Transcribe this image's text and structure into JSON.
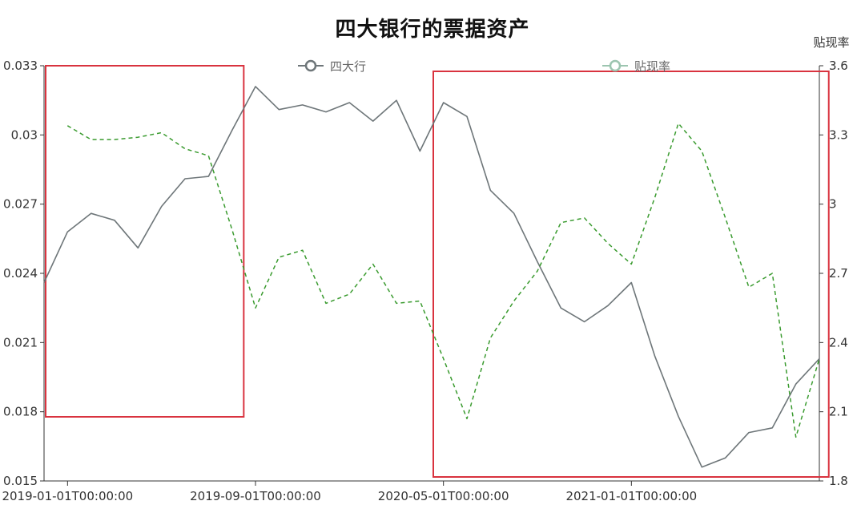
{
  "title": "四大银行的票据资产",
  "legend": {
    "series1": "四大行",
    "series2": "贴现率"
  },
  "right_axis_name": "贴现率",
  "colors": {
    "series1": "#6e7679",
    "series2": "#3a9b2f",
    "legend_marker2": "#9cc5b0",
    "highlight_box": "#d9333f",
    "axis": "#333333"
  },
  "chart_data": {
    "type": "line",
    "x_tick_labels": [
      "2019-01-01T00:00:00",
      "2019-09-01T00:00:00",
      "2020-05-01T00:00:00",
      "2021-01-01T00:00:00"
    ],
    "x_tick_indices": [
      1,
      9,
      17,
      25
    ],
    "left_axis": {
      "ylim": [
        0.015,
        0.033
      ],
      "ticks": [
        "0.015",
        "0.018",
        "0.021",
        "0.024",
        "0.027",
        "0.03",
        "0.033"
      ]
    },
    "right_axis": {
      "ylim": [
        1.8,
        3.6
      ],
      "ticks": [
        "1.8",
        "2.1",
        "2.4",
        "2.7",
        "3",
        "3.3",
        "3.6"
      ]
    },
    "series": [
      {
        "name": "四大行",
        "axis": "left",
        "style": "solid",
        "values": [
          0.0236,
          0.0258,
          0.0266,
          0.0263,
          0.0251,
          0.0269,
          0.0281,
          0.0282,
          0.0302,
          0.0321,
          0.0311,
          0.0313,
          0.031,
          0.0314,
          0.0306,
          0.0315,
          0.0293,
          0.0314,
          0.0308,
          0.0276,
          0.0266,
          0.0245,
          0.0225,
          0.0219,
          0.0226,
          0.0236,
          0.0204,
          0.0178,
          0.0156,
          0.016,
          0.0171,
          0.0173,
          0.0192,
          0.0203
        ]
      },
      {
        "name": "贴现率",
        "axis": "right",
        "style": "dashed",
        "values": [
          null,
          3.34,
          3.28,
          3.28,
          3.29,
          3.31,
          3.24,
          3.21,
          2.89,
          2.55,
          2.77,
          2.8,
          2.57,
          2.61,
          2.74,
          2.57,
          2.58,
          2.33,
          2.07,
          2.42,
          2.58,
          2.71,
          2.92,
          2.94,
          2.83,
          2.74,
          3.03,
          3.35,
          3.23,
          2.94,
          2.64,
          2.7,
          1.99,
          2.33
        ]
      }
    ],
    "highlights": [
      {
        "from_index": 0,
        "to_index": 8.5
      },
      {
        "from_index": 16.5,
        "to_index": 33.4
      }
    ]
  }
}
